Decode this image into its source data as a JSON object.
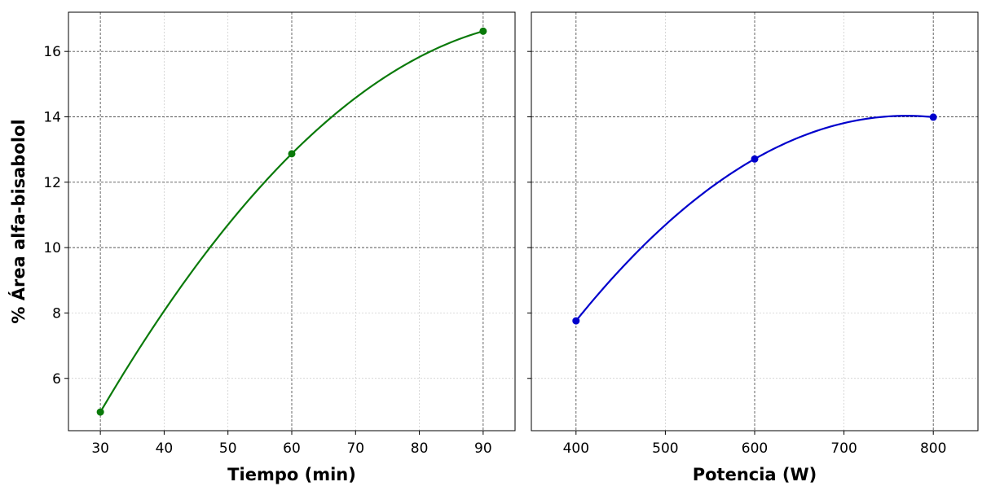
{
  "chart_data": [
    {
      "type": "line",
      "xlabel": "Tiempo (min)",
      "ylabel": "% Área alfa-bisabolol",
      "xlim": [
        25,
        95
      ],
      "ylim": [
        4.4,
        17.2
      ],
      "xticks": [
        30,
        40,
        50,
        60,
        70,
        80,
        90
      ],
      "yticks": [
        6,
        8,
        10,
        12,
        14,
        16
      ],
      "major_x": [
        30,
        60,
        90
      ],
      "major_y": [
        10,
        12,
        14,
        16
      ],
      "grid": true,
      "series": [
        {
          "color": "#0a7a0a",
          "x": [
            30,
            60,
            90
          ],
          "y": [
            4.97,
            12.87,
            16.62
          ]
        }
      ]
    },
    {
      "type": "line",
      "xlabel": "Potencia (W)",
      "ylabel": "",
      "xlim": [
        350,
        850
      ],
      "ylim": [
        4.4,
        17.2
      ],
      "xticks": [
        400,
        500,
        600,
        700,
        800
      ],
      "yticks": [
        6,
        8,
        10,
        12,
        14,
        16
      ],
      "major_x": [
        400,
        600,
        800
      ],
      "major_y": [
        10,
        12,
        14,
        16
      ],
      "grid": true,
      "series": [
        {
          "color": "#0000cc",
          "x": [
            400,
            600,
            800
          ],
          "y": [
            7.76,
            12.71,
            13.99
          ]
        }
      ]
    }
  ]
}
